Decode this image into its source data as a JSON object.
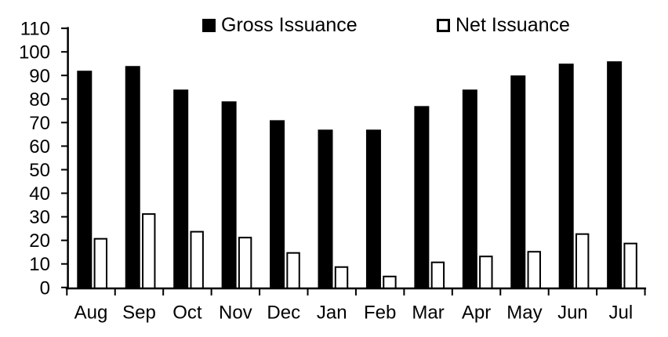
{
  "chart_data": {
    "type": "bar",
    "title": "",
    "xlabel": "",
    "ylabel": "",
    "categories": [
      "Aug",
      "Sep",
      "Oct",
      "Nov",
      "Dec",
      "Jan",
      "Feb",
      "Mar",
      "Apr",
      "May",
      "Jun",
      "Jul"
    ],
    "series": [
      {
        "name": "Gross Issuance",
        "values": [
          92,
          94,
          84,
          79,
          71,
          67,
          67,
          77,
          84,
          90,
          95,
          96
        ],
        "fill": "#000000",
        "stroke": "#000000"
      },
      {
        "name": "Net Issuance",
        "values": [
          21,
          31.5,
          24,
          21.5,
          15,
          9,
          5,
          11,
          13.5,
          15.5,
          23,
          19
        ],
        "fill": "#ffffff",
        "stroke": "#000000"
      }
    ],
    "ylim": [
      0,
      110
    ],
    "yticks": [
      0,
      10,
      20,
      30,
      40,
      50,
      60,
      70,
      80,
      90,
      100,
      110
    ],
    "grid": false,
    "legend_position": "top"
  },
  "colors": {
    "axis": "#000000",
    "text": "#000000",
    "background": "#ffffff",
    "gross_fill": "#000000",
    "net_fill": "#ffffff",
    "net_outline": "#000000"
  }
}
